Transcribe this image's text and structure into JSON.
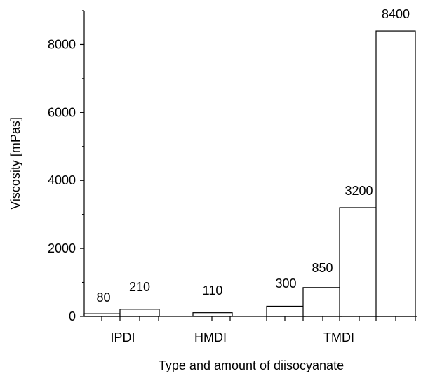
{
  "chart_data": {
    "type": "bar",
    "title": "",
    "xlabel": "Type and amount of diisocyanate",
    "ylabel": "Viscosity [mPas]",
    "ylim": [
      0,
      9000
    ],
    "yticks": [
      0,
      2000,
      4000,
      6000,
      8000
    ],
    "grid": false,
    "legend": "none",
    "groups": [
      "IPDI",
      "HMDI",
      "TMDI"
    ],
    "bars": [
      {
        "group": "IPDI",
        "value": 80,
        "label": "80"
      },
      {
        "group": "IPDI",
        "value": 210,
        "label": "210"
      },
      {
        "group": "HMDI",
        "value": 110,
        "label": "110"
      },
      {
        "group": "TMDI",
        "value": 300,
        "label": "300"
      },
      {
        "group": "TMDI",
        "value": 850,
        "label": "850"
      },
      {
        "group": "TMDI",
        "value": 3200,
        "label": "3200"
      },
      {
        "group": "TMDI",
        "value": 8400,
        "label": "8400"
      }
    ],
    "colors": {
      "bar_fill": "#ffffff",
      "bar_stroke": "#000000"
    }
  }
}
